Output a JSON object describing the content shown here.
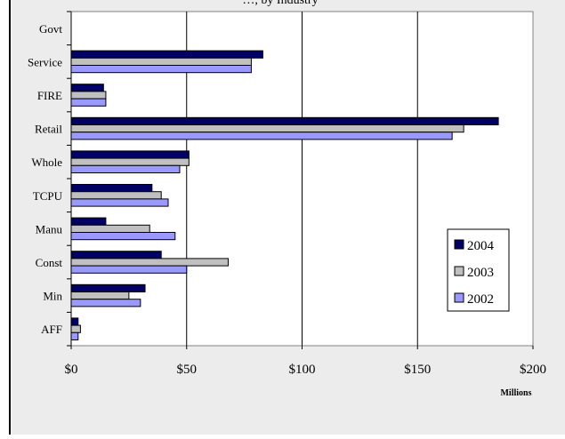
{
  "chart_data": {
    "type": "bar",
    "orientation": "horizontal",
    "title_fragment": "…, by Industry",
    "categories": [
      "Govt",
      "Service",
      "FIRE",
      "Retail",
      "Whole",
      "TCPU",
      "Manu",
      "Const",
      "Min",
      "AFF"
    ],
    "series": [
      {
        "name": "2004",
        "color": "#000066",
        "values": [
          0,
          83,
          14,
          185,
          51,
          35,
          15,
          39,
          32,
          3
        ]
      },
      {
        "name": "2003",
        "color": "#c0c0c0",
        "values": [
          0,
          78,
          15,
          170,
          51,
          39,
          34,
          68,
          25,
          4
        ]
      },
      {
        "name": "2002",
        "color": "#9999ff",
        "values": [
          0,
          78,
          15,
          165,
          47,
          42,
          45,
          50,
          30,
          3
        ]
      }
    ],
    "xlim": [
      0,
      200
    ],
    "xticks": [
      0,
      50,
      100,
      150,
      200
    ],
    "xtick_labels": [
      "$0",
      "$50",
      "$100",
      "$150",
      "$200"
    ],
    "xlabel": "Millions",
    "grid": "vertical",
    "legend_position": "right",
    "plot_background": "#ffffff",
    "figure_background": "#ececec"
  }
}
